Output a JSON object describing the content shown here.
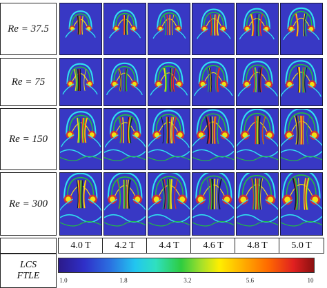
{
  "rows": [
    {
      "label": "Re = 37.5"
    },
    {
      "label": "Re = 75"
    },
    {
      "label": "Re = 150"
    },
    {
      "label": "Re = 300"
    }
  ],
  "times": [
    "4.0 T",
    "4.2 T",
    "4.4 T",
    "4.6 T",
    "4.8 T",
    "5.0 T"
  ],
  "legend": {
    "line1": "LCS",
    "line2": "FTLE",
    "ticks": [
      "1.0",
      "1.8",
      "3.2",
      "5.6",
      "10"
    ],
    "tick_values": [
      1.0,
      1.8,
      3.2,
      5.6,
      10
    ],
    "range": [
      1.0,
      10
    ],
    "scale": "log"
  },
  "colors": {
    "background_field": "#3838c4",
    "ridge_red": "#e83020",
    "ridge_yellow": "#f2e010",
    "ridge_green": "#22c040",
    "ridge_cyan": "#30e0f0"
  }
}
